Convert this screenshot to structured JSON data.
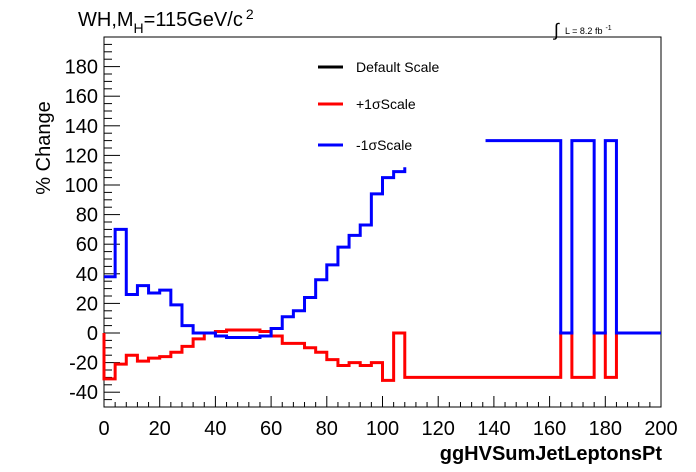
{
  "chart_data": {
    "type": "line",
    "title": "WH,M_H=115GeV/c^2",
    "title_parts": {
      "main": "WH,M",
      "sub": "H",
      "rest": "=115GeV/c",
      "sup": "2"
    },
    "lumi_label": {
      "integral": "∫",
      "text": "L = 8.2 fb",
      "sup": "-1"
    },
    "xlabel": "ggHVSumJetLeptonsPt",
    "ylabel": "% Change",
    "xlim": [
      0,
      200
    ],
    "ylim": [
      -50,
      200
    ],
    "x_ticks": [
      0,
      20,
      40,
      60,
      80,
      100,
      120,
      140,
      160,
      180,
      200
    ],
    "x_tick_labels": [
      "0",
      "20",
      "40",
      "60",
      "80",
      "100",
      "120",
      "140",
      "160",
      "180",
      "200"
    ],
    "y_ticks": [
      -40,
      -20,
      0,
      20,
      40,
      60,
      80,
      100,
      120,
      140,
      160,
      180
    ],
    "y_tick_labels": [
      "-40",
      "-20",
      "0",
      "20",
      "40",
      "60",
      "80",
      "100",
      "120",
      "140",
      "160",
      "180"
    ],
    "grid": false,
    "legend_position": "top-center",
    "series": [
      {
        "name": "Default Scale",
        "color": "#000000",
        "values": [],
        "edges": []
      },
      {
        "name": "+1σScale",
        "color": "#ff0000",
        "edges": [
          0,
          4,
          8,
          12,
          16,
          20,
          24,
          28,
          32,
          36,
          40,
          44,
          48,
          52,
          56,
          60,
          64,
          68,
          72,
          76,
          80,
          84,
          88,
          92,
          96,
          100,
          104,
          108,
          164,
          168,
          176,
          180,
          184,
          200
        ],
        "values": [
          -31,
          -21,
          -15,
          -19,
          -17,
          -16,
          -13,
          -9,
          -4,
          0,
          1,
          2,
          2,
          2,
          1,
          -2,
          -7,
          -7,
          -10,
          -13,
          -18,
          -22,
          -20,
          -22,
          -20,
          -32,
          0,
          -30,
          0,
          -30,
          0,
          -30,
          0
        ]
      },
      {
        "name": "-1σScale",
        "color": "#0000ff",
        "segments": [
          {
            "edges": [
              0,
              4,
              8,
              12,
              16,
              20,
              24,
              28,
              32,
              36,
              40,
              44,
              48,
              52,
              56,
              60,
              64,
              68,
              72,
              76,
              80,
              84,
              88,
              92,
              96,
              100,
              104,
              108
            ],
            "values": [
              38,
              70,
              26,
              32,
              27,
              29,
              19,
              5,
              0,
              0,
              -2,
              -3,
              -3,
              -3,
              -2,
              3,
              11,
              15,
              24,
              36,
              46,
              58,
              66,
              73,
              94,
              105,
              109,
              112
            ]
          },
          {
            "edges": [
              137,
              164,
              168,
              176,
              180,
              184,
              200
            ],
            "values": [
              130,
              0,
              130,
              0,
              130,
              0
            ]
          }
        ]
      }
    ]
  }
}
